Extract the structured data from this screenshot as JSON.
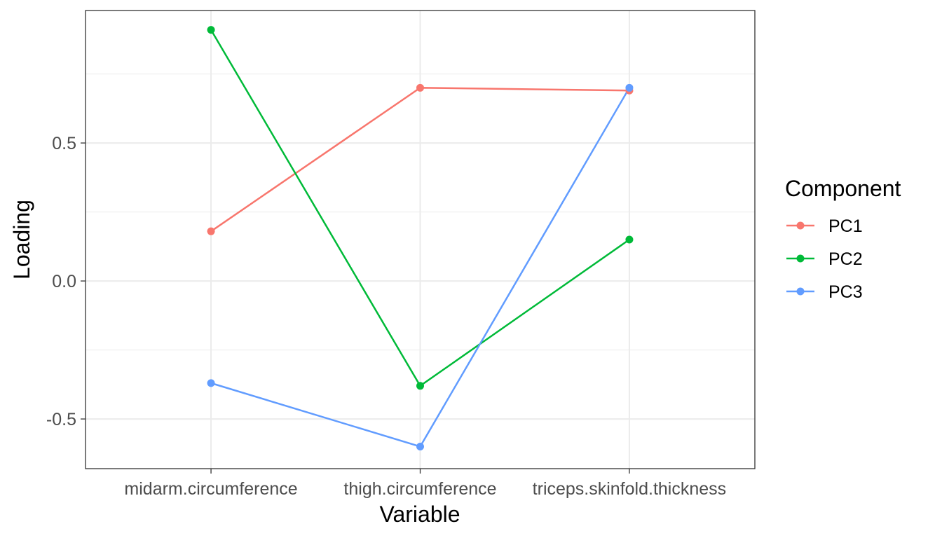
{
  "chart_data": {
    "type": "line",
    "title": "",
    "xlabel": "Variable",
    "ylabel": "Loading",
    "categories": [
      "midarm.circumference",
      "thigh.circumference",
      "triceps.skinfold.thickness"
    ],
    "ylim": [
      -0.68,
      0.98
    ],
    "yticks": [
      -0.5,
      0.0,
      0.5
    ],
    "ytick_labels": [
      "-0.5",
      "0.0",
      "0.5"
    ],
    "grid": true,
    "legend": {
      "title": "Component",
      "placement": "right"
    },
    "series": [
      {
        "name": "PC1",
        "color": "#F8766D",
        "values": [
          0.18,
          0.7,
          0.69
        ]
      },
      {
        "name": "PC2",
        "color": "#00BA38",
        "values": [
          0.91,
          -0.38,
          0.15
        ]
      },
      {
        "name": "PC3",
        "color": "#619CFF",
        "values": [
          -0.37,
          -0.6,
          0.7
        ]
      }
    ]
  }
}
